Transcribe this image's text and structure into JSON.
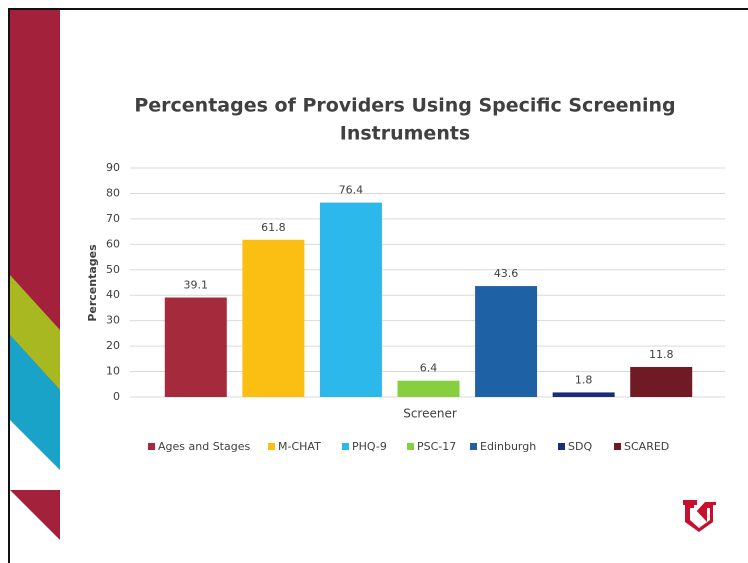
{
  "chart_data": {
    "type": "bar",
    "title": [
      "Percentages of Providers Using Specific Screening",
      "Instruments"
    ],
    "x_label": "Screener",
    "y_label": "Percentages",
    "categories": [
      "Ages and Stages",
      "M-CHAT",
      "PHQ-9",
      "PSC-17",
      "Edinburgh",
      "SDQ",
      "SCARED"
    ],
    "values": [
      39.1,
      61.8,
      76.4,
      6.4,
      43.6,
      1.8,
      11.8
    ],
    "colors": [
      "#a52a3c",
      "#fbbf14",
      "#2db8ec",
      "#86d040",
      "#1e62a5",
      "#1b2d78",
      "#701a26"
    ],
    "ylim": [
      0,
      90
    ],
    "yticks": [
      0,
      10,
      20,
      30,
      40,
      50,
      60,
      70,
      80,
      90
    ],
    "grid": true,
    "legend": "bottom"
  }
}
